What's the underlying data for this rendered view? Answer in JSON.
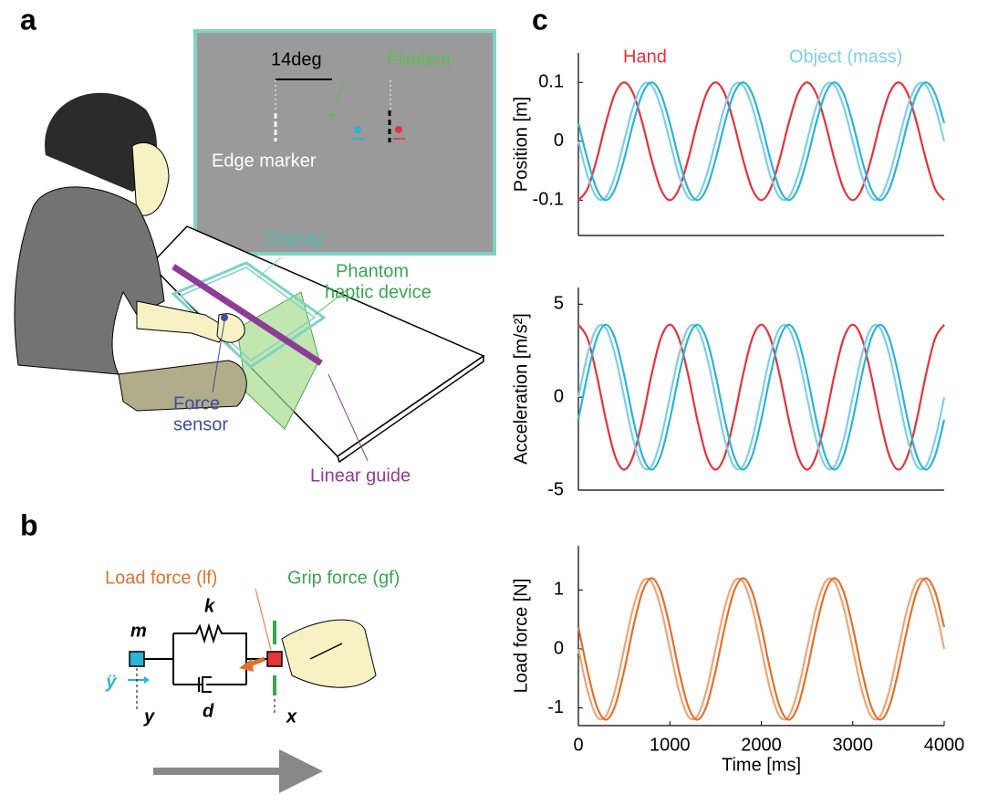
{
  "panels": {
    "a": "a",
    "b": "b",
    "c": "c"
  },
  "panel_a": {
    "angle": "14deg",
    "fixation": "Fixation",
    "edge_marker": "Edge marker",
    "display": "Display",
    "phantom": [
      "Phantom",
      "haptic device"
    ],
    "force_sensor": [
      "Force",
      "sensor"
    ],
    "linear_guide": "Linear guide"
  },
  "panel_b": {
    "load_force": "Load force (lf)",
    "grip_force": "Grip force (gf)",
    "k": "k",
    "m": "m",
    "d": "d",
    "y": "y",
    "x": "x",
    "ydd": "ÿ"
  },
  "chart_data": [
    {
      "type": "line",
      "y_label": "Position [m]",
      "xlim": [
        0,
        4000
      ],
      "ylim": [
        -0.16,
        0.15
      ],
      "yticks": [
        -0.1,
        0,
        0.1
      ],
      "x": [
        0,
        100,
        200,
        300,
        400,
        500,
        600,
        700,
        800,
        900,
        1000,
        1100,
        1200,
        1300,
        1400,
        1500,
        1600,
        1700,
        1800,
        1900,
        2000,
        2100,
        2200,
        2300,
        2400,
        2500,
        2600,
        2700,
        2800,
        2900,
        3000,
        3100,
        3200,
        3300,
        3400,
        3500,
        3600,
        3700,
        3800,
        3900,
        4000
      ],
      "series": [
        {
          "name": "Hand",
          "color": "#e5323b",
          "values": [
            -0.1,
            -0.0809,
            -0.0309,
            0.0309,
            0.0809,
            0.1,
            0.0809,
            0.0309,
            -0.0309,
            -0.0809,
            -0.1,
            -0.0809,
            -0.0309,
            0.0309,
            0.0809,
            0.1,
            0.0809,
            0.0309,
            -0.0309,
            -0.0809,
            -0.1,
            -0.0809,
            -0.0309,
            0.0309,
            0.0809,
            0.1,
            0.0809,
            0.0309,
            -0.0309,
            -0.0809,
            -0.1,
            -0.0809,
            -0.0309,
            0.0309,
            0.0809,
            0.1,
            0.0809,
            0.0309,
            -0.0309,
            -0.0809,
            -0.1
          ]
        },
        {
          "name": "Object (mass)",
          "color": "#7dcfe6",
          "values": [
            0,
            -0.0588,
            -0.0951,
            -0.0951,
            -0.0588,
            0,
            0.0588,
            0.0951,
            0.0951,
            0.0588,
            0,
            -0.0588,
            -0.0951,
            -0.0951,
            -0.0588,
            0,
            0.0588,
            0.0951,
            0.0951,
            0.0588,
            0,
            -0.0588,
            -0.0951,
            -0.0951,
            -0.0588,
            0,
            0.0588,
            0.0951,
            0.0951,
            0.0588,
            0,
            -0.0588,
            -0.0951,
            -0.0951,
            -0.0588,
            0,
            0.0588,
            0.0951,
            0.0951,
            0.0588,
            0
          ]
        },
        {
          "color": "#2eb3d6",
          "values": [
            0.0309,
            -0.0309,
            -0.0809,
            -0.1,
            -0.0809,
            -0.0309,
            0.0309,
            0.0809,
            0.1,
            0.0809,
            0.0309,
            -0.0309,
            -0.0809,
            -0.1,
            -0.0809,
            -0.0309,
            0.0309,
            0.0809,
            0.1,
            0.0809,
            0.0309,
            -0.0309,
            -0.0809,
            -0.1,
            -0.0809,
            -0.0309,
            0.0309,
            0.0809,
            0.1,
            0.0809,
            0.0309,
            -0.0309,
            -0.0809,
            -0.1,
            -0.0809,
            -0.0309,
            0.0309,
            0.0809,
            0.1,
            0.0809,
            0.0309
          ]
        }
      ]
    },
    {
      "type": "line",
      "y_label": "Acceleration [m/s²]",
      "xlim": [
        0,
        4000
      ],
      "ylim": [
        -5,
        5.9
      ],
      "yticks": [
        -5,
        0,
        5
      ],
      "x": [
        0,
        100,
        200,
        300,
        400,
        500,
        600,
        700,
        800,
        900,
        1000,
        1100,
        1200,
        1300,
        1400,
        1500,
        1600,
        1700,
        1800,
        1900,
        2000,
        2100,
        2200,
        2300,
        2400,
        2500,
        2600,
        2700,
        2800,
        2900,
        3000,
        3100,
        3200,
        3300,
        3400,
        3500,
        3600,
        3700,
        3800,
        3900,
        4000
      ],
      "series": [
        {
          "color": "#e5323b",
          "values": [
            3.9,
            3.155,
            1.205,
            -1.205,
            -3.155,
            -3.9,
            -3.155,
            -1.205,
            1.205,
            3.155,
            3.9,
            3.155,
            1.205,
            -1.205,
            -3.155,
            -3.9,
            -3.155,
            -1.205,
            1.205,
            3.155,
            3.9,
            3.155,
            1.205,
            -1.205,
            -3.155,
            -3.9,
            -3.155,
            -1.205,
            1.205,
            3.155,
            3.9,
            3.155,
            1.205,
            -1.205,
            -3.155,
            -3.9,
            -3.155,
            -1.205,
            1.205,
            3.155,
            3.9
          ]
        },
        {
          "color": "#7dcfe6",
          "values": [
            0,
            2.292,
            3.709,
            3.709,
            2.292,
            0,
            -2.292,
            -3.709,
            -3.709,
            -2.292,
            0,
            2.292,
            3.709,
            3.709,
            2.292,
            0,
            -2.292,
            -3.709,
            -3.709,
            -2.292,
            0,
            2.292,
            3.709,
            3.709,
            2.292,
            0,
            -2.292,
            -3.709,
            -3.709,
            -2.292,
            0,
            2.292,
            3.709,
            3.709,
            2.292,
            0,
            -2.292,
            -3.709,
            -3.709,
            -2.292,
            0
          ]
        },
        {
          "color": "#2eb3d6",
          "values": [
            -1.205,
            1.205,
            3.155,
            3.9,
            3.155,
            1.205,
            -1.205,
            -3.155,
            -3.9,
            -3.155,
            -1.205,
            1.205,
            3.155,
            3.9,
            3.155,
            1.205,
            -1.205,
            -3.155,
            -3.9,
            -3.155,
            -1.205,
            1.205,
            3.155,
            3.9,
            3.155,
            1.205,
            -1.205,
            -3.155,
            -3.9,
            -3.155,
            -1.205,
            1.205,
            3.155,
            3.9,
            3.155,
            1.205,
            -1.205,
            -3.155,
            -3.9,
            -3.155,
            -1.205
          ]
        }
      ]
    },
    {
      "type": "line",
      "y_label": "Load force [N]",
      "x_label": "Time [ms]",
      "xlim": [
        0,
        4000
      ],
      "ylim": [
        -1.3,
        1.75
      ],
      "yticks": [
        -1,
        0,
        1
      ],
      "xticks": [
        0,
        1000,
        2000,
        3000,
        4000
      ],
      "x": [
        0,
        100,
        200,
        300,
        400,
        500,
        600,
        700,
        800,
        900,
        1000,
        1100,
        1200,
        1300,
        1400,
        1500,
        1600,
        1700,
        1800,
        1900,
        2000,
        2100,
        2200,
        2300,
        2400,
        2500,
        2600,
        2700,
        2800,
        2900,
        3000,
        3100,
        3200,
        3300,
        3400,
        3500,
        3600,
        3700,
        3800,
        3900,
        4000
      ],
      "series": [
        {
          "color": "#f0a476",
          "values": [
            0,
            -0.705,
            -1.141,
            -1.141,
            -0.705,
            0,
            0.705,
            1.141,
            1.141,
            0.705,
            0,
            -0.705,
            -1.141,
            -1.141,
            -0.705,
            0,
            0.705,
            1.141,
            1.141,
            0.705,
            0,
            -0.705,
            -1.141,
            -1.141,
            -0.705,
            0,
            0.705,
            1.141,
            1.141,
            0.705,
            0,
            -0.705,
            -1.141,
            -1.141,
            -0.705,
            0,
            0.705,
            1.141,
            1.141,
            0.705,
            0
          ]
        },
        {
          "color": "#e0712c",
          "values": [
            0.371,
            -0.371,
            -0.971,
            -1.2,
            -0.971,
            -0.371,
            0.371,
            0.971,
            1.2,
            0.971,
            0.371,
            -0.371,
            -0.971,
            -1.2,
            -0.971,
            -0.371,
            0.371,
            0.971,
            1.2,
            0.971,
            0.371,
            -0.371,
            -0.971,
            -1.2,
            -0.971,
            -0.371,
            0.371,
            0.971,
            1.2,
            0.971,
            0.371,
            -0.371,
            -0.971,
            -1.2,
            -0.971,
            -0.371,
            0.371,
            0.971,
            1.2,
            0.971,
            0.371
          ]
        }
      ]
    }
  ]
}
